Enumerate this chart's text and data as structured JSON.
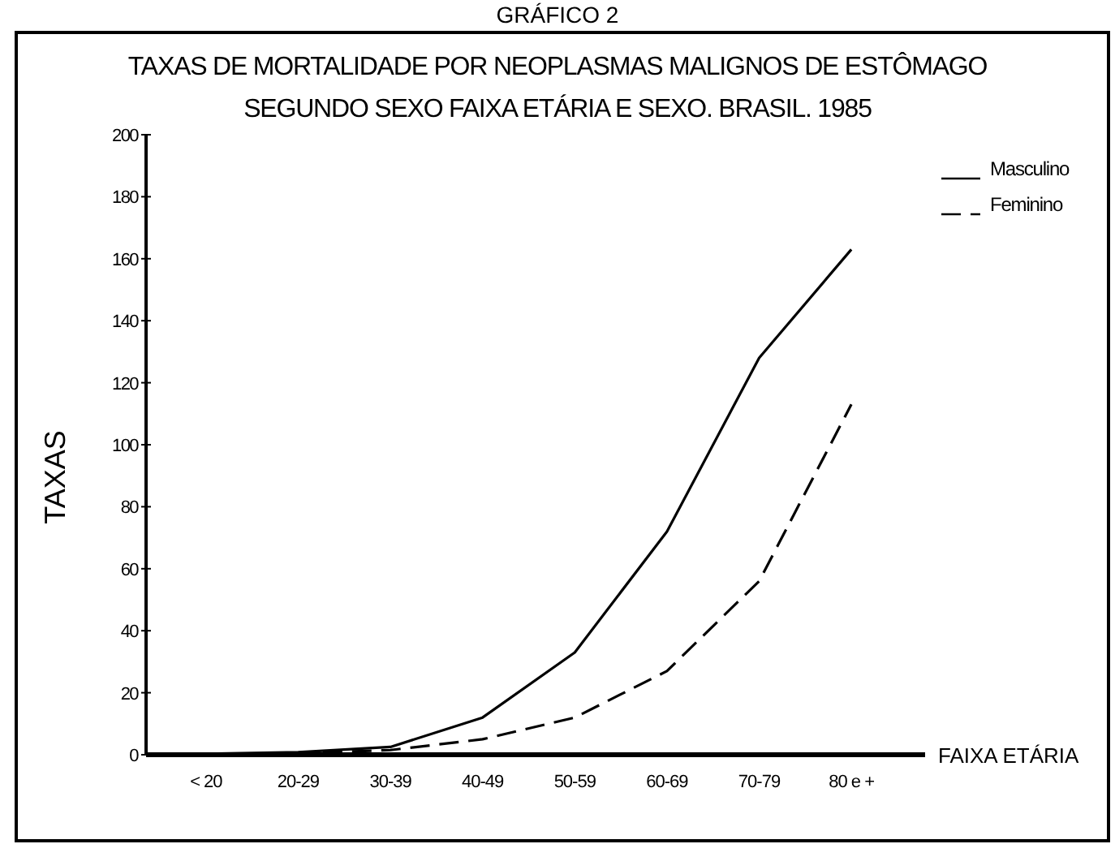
{
  "chart_data": {
    "type": "line",
    "title": "TAXAS DE MORTALIDADE POR NEOPLASMAS MALIGNOS DE ESTÔMAGO",
    "subtitle": "SEGUNDO SEXO FAIXA ETÁRIA E SEXO. BRASIL. 1985",
    "annotations": [
      "GRÁFICO 2"
    ],
    "xlabel": "FAIXA ETÁRIA",
    "ylabel": "TAXAS",
    "categories": [
      "< 20",
      "20-29",
      "30-39",
      "40-49",
      "50-59",
      "60-69",
      "70-79",
      "80 e +"
    ],
    "series": [
      {
        "name": "Masculino",
        "color": "#000000",
        "line_style": "solid",
        "values": [
          0.3,
          0.8,
          2.5,
          12,
          33,
          72,
          128,
          163
        ]
      },
      {
        "name": "Feminino",
        "color": "#000000",
        "line_style": "dashed",
        "values": [
          0.2,
          0.5,
          1.5,
          5,
          12,
          27,
          56,
          113
        ]
      }
    ],
    "ylim": [
      0,
      200
    ],
    "yticks": [
      0,
      20,
      40,
      60,
      80,
      100,
      120,
      140,
      160,
      180,
      200
    ],
    "grid": false,
    "legend": "top right",
    "marker": "none"
  }
}
